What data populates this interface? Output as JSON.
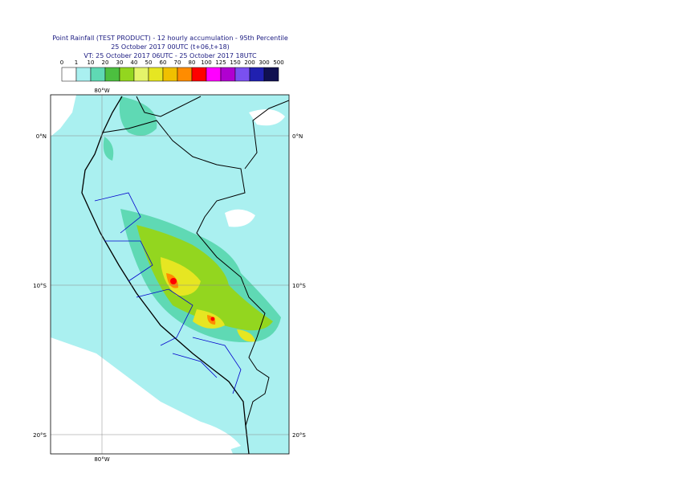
{
  "header": {
    "title_lines": [
      "Point Rainfall (TEST PRODUCT) - 12 hourly accumulation - 95th Percentile",
      "25 October 2017 00UTC (t+06,t+18)",
      "VT: 25 October 2017 06UTC - 25 October 2017 18UTC"
    ]
  },
  "legend": {
    "labels": [
      "0",
      "1",
      "10",
      "20",
      "30",
      "40",
      "50",
      "60",
      "70",
      "80",
      "100",
      "125",
      "150",
      "200",
      "300",
      "500"
    ],
    "colors": [
      "#ffffff",
      "#aaf0f0",
      "#5fd9b4",
      "#4cbf3f",
      "#93d61f",
      "#e4f46a",
      "#e6e622",
      "#f0c000",
      "#ff8c00",
      "#ff0000",
      "#ff00ff",
      "#b000d0",
      "#7a50f0",
      "#2020b0",
      "#101050"
    ]
  },
  "map": {
    "lon_label": "80°W",
    "lat_labels": [
      "0°N",
      "10°S",
      "20°S"
    ]
  }
}
